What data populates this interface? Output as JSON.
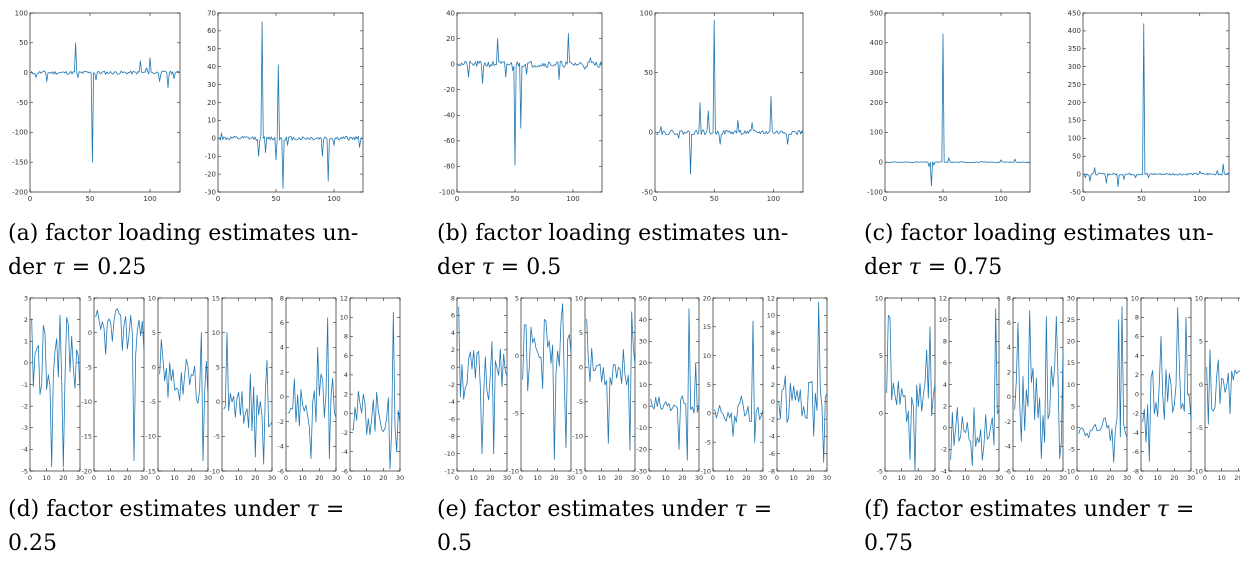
{
  "figure": {
    "line_color": "#1f77b4"
  },
  "captions": [
    {
      "id": "a",
      "line1": "(a) factor loading estimates un-",
      "line2_prefix": "der ",
      "tau": "τ",
      "line2_suffix": " = 0.25"
    },
    {
      "id": "b",
      "line1": "(b) factor loading estimates un-",
      "line2_prefix": "der ",
      "tau": "τ",
      "line2_suffix": " = 0.5"
    },
    {
      "id": "c",
      "line1": "(c) factor loading estimates un-",
      "line2_prefix": "der ",
      "tau": "τ",
      "line2_suffix": " = 0.75"
    },
    {
      "id": "d",
      "line1_prefix": "(d) factor estimates under ",
      "tau": "τ",
      "line1_suffix": " =",
      "line2": "0.25"
    },
    {
      "id": "e",
      "line1_prefix": "(e) factor estimates under ",
      "tau": "τ",
      "line1_suffix": " =",
      "line2": "0.5"
    },
    {
      "id": "f",
      "line1_prefix": "(f) factor estimates under ",
      "tau": "τ",
      "line1_suffix": " =",
      "line2": "0.75"
    }
  ],
  "chart_data": [
    {
      "id": "a1",
      "type": "line",
      "xlim": [
        0,
        125
      ],
      "ylim": [
        -200,
        100
      ],
      "xticks": [
        0,
        50,
        100
      ],
      "yticks": [
        -200,
        -150,
        -100,
        -50,
        0,
        50,
        100
      ],
      "spikes": [
        [
          38,
          50
        ],
        [
          40,
          -8
        ],
        [
          52,
          -150
        ],
        [
          55,
          -12
        ],
        [
          92,
          20
        ],
        [
          97,
          8
        ],
        [
          100,
          25
        ],
        [
          108,
          -15
        ],
        [
          115,
          -25
        ],
        [
          120,
          -10
        ],
        [
          5,
          -8
        ],
        [
          14,
          -15
        ]
      ],
      "noise": 3,
      "n": 125,
      "seed": 11
    },
    {
      "id": "a2",
      "type": "line",
      "xlim": [
        0,
        125
      ],
      "ylim": [
        -30,
        70
      ],
      "xticks": [
        0,
        50,
        100
      ],
      "yticks": [
        -30,
        -20,
        -10,
        0,
        10,
        20,
        30,
        40,
        50,
        60,
        70
      ],
      "spikes": [
        [
          35,
          -10
        ],
        [
          38,
          65
        ],
        [
          41,
          -8
        ],
        [
          50,
          -12
        ],
        [
          52,
          41
        ],
        [
          56,
          -28
        ],
        [
          60,
          -4
        ],
        [
          90,
          -10
        ],
        [
          95,
          -24
        ],
        [
          100,
          -4
        ],
        [
          3,
          3
        ],
        [
          122,
          -5
        ]
      ],
      "noise": 1.2,
      "n": 125,
      "seed": 12
    },
    {
      "id": "b1",
      "type": "line",
      "xlim": [
        0,
        125
      ],
      "ylim": [
        -100,
        40
      ],
      "xticks": [
        0,
        50,
        100
      ],
      "yticks": [
        -100,
        -80,
        -60,
        -40,
        -20,
        0,
        20,
        40
      ],
      "spikes": [
        [
          10,
          -10
        ],
        [
          22,
          -15
        ],
        [
          35,
          20
        ],
        [
          42,
          -10
        ],
        [
          48,
          -5
        ],
        [
          50,
          -79
        ],
        [
          55,
          -50
        ],
        [
          60,
          -8
        ],
        [
          88,
          -12
        ],
        [
          96,
          24
        ],
        [
          110,
          -4
        ],
        [
          115,
          5
        ]
      ],
      "noise": 2.5,
      "n": 125,
      "seed": 21
    },
    {
      "id": "b2",
      "type": "line",
      "xlim": [
        0,
        125
      ],
      "ylim": [
        -50,
        100
      ],
      "xticks": [
        0,
        50,
        100
      ],
      "yticks": [
        -50,
        0,
        50,
        100
      ],
      "spikes": [
        [
          5,
          5
        ],
        [
          20,
          -5
        ],
        [
          30,
          -35
        ],
        [
          38,
          25
        ],
        [
          45,
          18
        ],
        [
          50,
          94
        ],
        [
          55,
          -10
        ],
        [
          70,
          10
        ],
        [
          82,
          8
        ],
        [
          98,
          30
        ],
        [
          112,
          -10
        ],
        [
          120,
          -2
        ]
      ],
      "noise": 2,
      "n": 125,
      "seed": 22
    },
    {
      "id": "c1",
      "type": "line",
      "xlim": [
        0,
        125
      ],
      "ylim": [
        -100,
        500
      ],
      "xticks": [
        0,
        50,
        100
      ],
      "yticks": [
        -100,
        0,
        100,
        200,
        300,
        400,
        500
      ],
      "spikes": [
        [
          38,
          -15
        ],
        [
          40,
          -80
        ],
        [
          42,
          -10
        ],
        [
          50,
          430
        ],
        [
          55,
          15
        ],
        [
          100,
          8
        ],
        [
          112,
          10
        ]
      ],
      "noise": 1.5,
      "n": 125,
      "seed": 31
    },
    {
      "id": "c2",
      "type": "line",
      "xlim": [
        0,
        125
      ],
      "ylim": [
        -50,
        450
      ],
      "xticks": [
        0,
        50,
        100
      ],
      "yticks": [
        -50,
        0,
        50,
        100,
        150,
        200,
        250,
        300,
        350,
        400,
        450
      ],
      "spikes": [
        [
          2,
          -10
        ],
        [
          6,
          -20
        ],
        [
          10,
          18
        ],
        [
          20,
          -25
        ],
        [
          30,
          -35
        ],
        [
          35,
          -15
        ],
        [
          45,
          -10
        ],
        [
          52,
          420
        ],
        [
          56,
          -10
        ],
        [
          100,
          8
        ],
        [
          115,
          10
        ],
        [
          120,
          28
        ]
      ],
      "noise": 3,
      "n": 125,
      "seed": 32
    },
    {
      "id": "d1",
      "type": "line",
      "xlim": [
        0,
        30
      ],
      "ylim": [
        -5,
        3
      ],
      "xticks": [
        0,
        10,
        20,
        30
      ],
      "yticks": [
        -5,
        -4,
        -3,
        -2,
        -1,
        0,
        1,
        2,
        3
      ],
      "base": 0.2,
      "amp": 1.2,
      "spikes": [
        [
          13,
          -4.8
        ],
        [
          20,
          -4.8
        ],
        [
          22,
          2.1
        ],
        [
          18,
          2.2
        ]
      ],
      "n": 30,
      "seed": 41
    },
    {
      "id": "d2",
      "type": "line",
      "xlim": [
        0,
        30
      ],
      "ylim": [
        -20,
        5
      ],
      "xticks": [
        0,
        10,
        20,
        30
      ],
      "yticks": [
        -20,
        -15,
        -10,
        -5,
        0,
        5
      ],
      "base": 0,
      "amp": 2.2,
      "spikes": [
        [
          24,
          -18.5
        ],
        [
          22,
          2.5
        ],
        [
          10,
          1.5
        ],
        [
          16,
          2.5
        ]
      ],
      "n": 30,
      "seed": 42
    },
    {
      "id": "d3",
      "type": "line",
      "xlim": [
        0,
        30
      ],
      "ylim": [
        -15,
        10
      ],
      "xticks": [
        0,
        10,
        20,
        30
      ],
      "yticks": [
        -15,
        -10,
        -5,
        0,
        5,
        10
      ],
      "base": -2,
      "amp": 2,
      "spikes": [
        [
          27,
          -13.5
        ],
        [
          26,
          5
        ],
        [
          2,
          4
        ]
      ],
      "n": 30,
      "seed": 43
    },
    {
      "id": "d4",
      "type": "line",
      "xlim": [
        0,
        30
      ],
      "ylim": [
        -10,
        15
      ],
      "xticks": [
        0,
        10,
        20,
        30
      ],
      "yticks": [
        -10,
        -5,
        0,
        5,
        10,
        15
      ],
      "base": -1,
      "amp": 2,
      "spikes": [
        [
          3,
          10
        ],
        [
          20,
          -8
        ],
        [
          25,
          -9
        ],
        [
          27,
          6
        ],
        [
          17,
          4
        ]
      ],
      "n": 30,
      "seed": 44
    },
    {
      "id": "d5",
      "type": "line",
      "xlim": [
        0,
        30
      ],
      "ylim": [
        -6,
        8
      ],
      "xticks": [
        0,
        10,
        20,
        30
      ],
      "yticks": [
        -6,
        -4,
        -2,
        0,
        2,
        4,
        6,
        8
      ],
      "base": -0.5,
      "amp": 1.5,
      "spikes": [
        [
          15,
          -5
        ],
        [
          25,
          6.4
        ],
        [
          26,
          -5
        ],
        [
          19,
          4
        ]
      ],
      "n": 30,
      "seed": 45
    },
    {
      "id": "d6",
      "type": "line",
      "xlim": [
        0,
        30
      ],
      "ylim": [
        -6,
        12
      ],
      "xticks": [
        0,
        10,
        20,
        30
      ],
      "yticks": [
        -6,
        -4,
        -2,
        0,
        2,
        4,
        6,
        8,
        10,
        12
      ],
      "base": 0,
      "amp": 1.5,
      "spikes": [
        [
          26,
          10.5
        ],
        [
          24,
          -5.8
        ],
        [
          28,
          -4
        ]
      ],
      "n": 30,
      "seed": 46
    },
    {
      "id": "e1",
      "type": "line",
      "xlim": [
        0,
        30
      ],
      "ylim": [
        -12,
        8
      ],
      "xticks": [
        0,
        10,
        20,
        30
      ],
      "yticks": [
        -12,
        -10,
        -8,
        -6,
        -4,
        -2,
        0,
        2,
        4,
        6,
        8
      ],
      "base": -1,
      "amp": 2,
      "spikes": [
        [
          1,
          7
        ],
        [
          15,
          -10
        ],
        [
          22,
          -10
        ],
        [
          21,
          3
        ]
      ],
      "n": 30,
      "seed": 51
    },
    {
      "id": "e2",
      "type": "line",
      "xlim": [
        0,
        30
      ],
      "ylim": [
        -10,
        5
      ],
      "xticks": [
        0,
        10,
        20,
        30
      ],
      "yticks": [
        -10,
        -5,
        0,
        5
      ],
      "base": 0,
      "amp": 2,
      "spikes": [
        [
          20,
          -9
        ],
        [
          25,
          4.5
        ],
        [
          27,
          -8
        ],
        [
          15,
          3
        ]
      ],
      "n": 30,
      "seed": 52
    },
    {
      "id": "e3",
      "type": "line",
      "xlim": [
        0,
        30
      ],
      "ylim": [
        -15,
        10
      ],
      "xticks": [
        0,
        10,
        20,
        30
      ],
      "yticks": [
        -15,
        -10,
        -5,
        0,
        5,
        10
      ],
      "base": 0,
      "amp": 1.8,
      "spikes": [
        [
          28,
          8
        ],
        [
          27,
          -12
        ],
        [
          14,
          -11
        ],
        [
          1,
          7
        ]
      ],
      "n": 30,
      "seed": 53
    },
    {
      "id": "e4",
      "type": "line",
      "xlim": [
        0,
        30
      ],
      "ylim": [
        -30,
        50
      ],
      "xticks": [
        0,
        10,
        20,
        30
      ],
      "yticks": [
        -30,
        -20,
        -10,
        0,
        10,
        20,
        30,
        40,
        50
      ],
      "base": 0,
      "amp": 3,
      "spikes": [
        [
          24,
          45
        ],
        [
          23,
          -25
        ],
        [
          18,
          -20
        ],
        [
          28,
          20
        ]
      ],
      "n": 30,
      "seed": 54
    },
    {
      "id": "e5",
      "type": "line",
      "xlim": [
        0,
        30
      ],
      "ylim": [
        -10,
        20
      ],
      "xticks": [
        0,
        10,
        20,
        30
      ],
      "yticks": [
        -10,
        -5,
        0,
        5,
        10,
        15,
        20
      ],
      "base": 0,
      "amp": 1.2,
      "spikes": [
        [
          24,
          16
        ],
        [
          25,
          -5
        ],
        [
          12,
          -4
        ],
        [
          17,
          3
        ]
      ],
      "n": 30,
      "seed": 55
    },
    {
      "id": "e6",
      "type": "line",
      "xlim": [
        0,
        30
      ],
      "ylim": [
        -8,
        12
      ],
      "xticks": [
        0,
        10,
        20,
        30
      ],
      "yticks": [
        -8,
        -6,
        -4,
        -2,
        0,
        2,
        4,
        6,
        8,
        10,
        12
      ],
      "base": 0,
      "amp": 1.5,
      "spikes": [
        [
          25,
          11.5
        ],
        [
          28,
          -7
        ],
        [
          22,
          -4
        ],
        [
          5,
          3
        ]
      ],
      "n": 30,
      "seed": 56
    },
    {
      "id": "f1",
      "type": "line",
      "xlim": [
        0,
        30
      ],
      "ylim": [
        -5,
        10
      ],
      "xticks": [
        0,
        10,
        20,
        30
      ],
      "yticks": [
        -5,
        0,
        5,
        10
      ],
      "base": 1,
      "amp": 1.2,
      "spikes": [
        [
          2,
          8.5
        ],
        [
          3,
          8.3
        ],
        [
          15,
          -4
        ],
        [
          18,
          -5
        ],
        [
          25,
          5.5
        ],
        [
          27,
          7.5
        ]
      ],
      "n": 30,
      "seed": 61
    },
    {
      "id": "f2",
      "type": "line",
      "xlim": [
        0,
        30
      ],
      "ylim": [
        -4,
        12
      ],
      "xticks": [
        0,
        10,
        20,
        30
      ],
      "yticks": [
        -4,
        -2,
        0,
        2,
        4,
        6,
        8,
        10,
        12
      ],
      "base": 0,
      "amp": 1.2,
      "spikes": [
        [
          28,
          11
        ],
        [
          1,
          -3
        ],
        [
          14,
          -3.5
        ],
        [
          20,
          -3
        ]
      ],
      "n": 30,
      "seed": 62
    },
    {
      "id": "f3",
      "type": "line",
      "xlim": [
        0,
        30
      ],
      "ylim": [
        -6,
        8
      ],
      "xticks": [
        0,
        10,
        20,
        30
      ],
      "yticks": [
        -6,
        -4,
        -2,
        0,
        2,
        4,
        6,
        8
      ],
      "base": 0,
      "amp": 2.5,
      "spikes": [
        [
          3,
          6
        ],
        [
          10,
          7
        ],
        [
          17,
          -5
        ],
        [
          20,
          6.5
        ],
        [
          26,
          6.5
        ],
        [
          28,
          -5
        ]
      ],
      "n": 30,
      "seed": 63
    },
    {
      "id": "f4",
      "type": "line",
      "xlim": [
        0,
        30
      ],
      "ylim": [
        -10,
        30
      ],
      "xticks": [
        0,
        10,
        20,
        30
      ],
      "yticks": [
        -10,
        -5,
        0,
        5,
        10,
        15,
        20,
        25,
        30
      ],
      "base": 0,
      "amp": 1.5,
      "spikes": [
        [
          25,
          25
        ],
        [
          27,
          28
        ],
        [
          22,
          -8
        ],
        [
          20,
          -3
        ]
      ],
      "n": 30,
      "seed": 64
    },
    {
      "id": "f5",
      "type": "line",
      "xlim": [
        0,
        30
      ],
      "ylim": [
        -8,
        10
      ],
      "xticks": [
        0,
        10,
        20,
        30
      ],
      "yticks": [
        -8,
        -6,
        -4,
        -2,
        0,
        2,
        4,
        6,
        8,
        10
      ],
      "base": 0,
      "amp": 2,
      "spikes": [
        [
          22,
          9
        ],
        [
          27,
          8
        ],
        [
          5,
          -7
        ],
        [
          3,
          -5
        ],
        [
          12,
          6
        ]
      ],
      "n": 30,
      "seed": 65
    },
    {
      "id": "f6",
      "type": "line",
      "xlim": [
        0,
        30
      ],
      "ylim": [
        -10,
        10
      ],
      "xticks": [
        0,
        10,
        20,
        30
      ],
      "yticks": [
        -10,
        -5,
        0,
        5,
        10
      ],
      "base": -1,
      "amp": 2.5,
      "spikes": [
        [
          27,
          9
        ],
        [
          24,
          -7
        ],
        [
          28,
          -6
        ],
        [
          3,
          4
        ]
      ],
      "n": 30,
      "seed": 66
    }
  ]
}
